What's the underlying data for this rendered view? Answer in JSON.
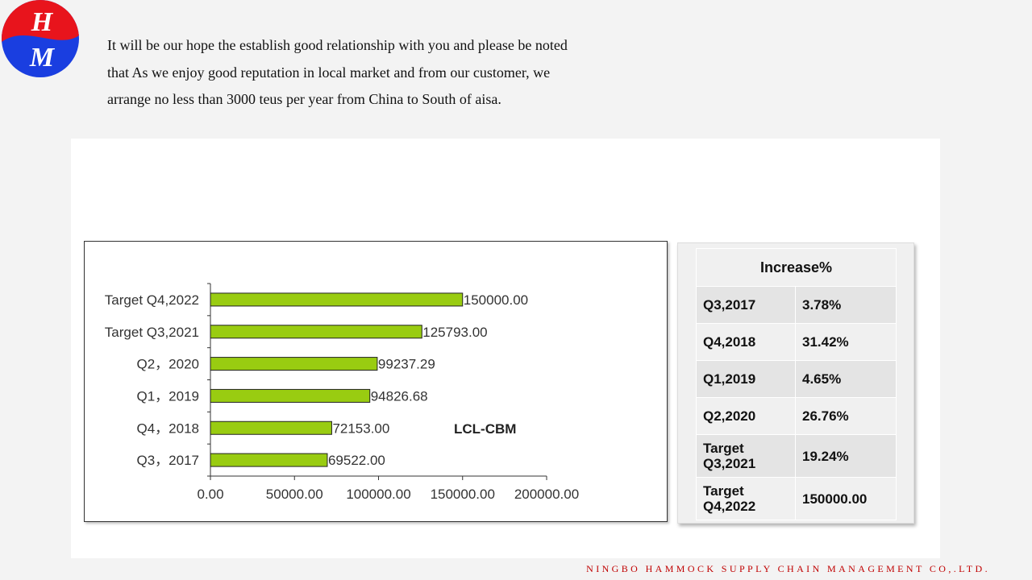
{
  "logo": {
    "letter_top": "H",
    "letter_bottom": "M",
    "colors": {
      "top": "#e8141c",
      "bottom": "#1a3ee0"
    }
  },
  "intro_text": "It will be our hope the establish good relationship with you and please be noted that As we enjoy good reputation in local market and from our customer, we arrange no less than 3000 teus per year from China to South of aisa.",
  "chart_data": {
    "type": "bar",
    "orientation": "horizontal",
    "categories": [
      "Q3，2017",
      "Q4，2018",
      "Q1，2019",
      "Q2，2020",
      "Target Q3,2021",
      "Target Q4,2022"
    ],
    "values": [
      69522.0,
      72153.0,
      94826.68,
      99237.29,
      125793.0,
      150000.0
    ],
    "value_labels": [
      "69522.00",
      "72153.00",
      "94826.68",
      "99237.29",
      "125793.00",
      "150000.00"
    ],
    "x_ticks": [
      "0.00",
      "50000.00",
      "100000.00",
      "150000.00",
      "200000.00"
    ],
    "xlim": [
      0,
      200000
    ],
    "annotation": "LCL-CBM",
    "bar_color": "#99cc11",
    "grid": false,
    "legend": "none"
  },
  "increase_table": {
    "header": "Increase%",
    "rows": [
      {
        "period": "Q3,2017",
        "value": "3.78%"
      },
      {
        "period": "Q4,2018",
        "value": "31.42%"
      },
      {
        "period": "Q1,2019",
        "value": "4.65%"
      },
      {
        "period": "Q2,2020",
        "value": "26.76%"
      },
      {
        "period": "Target Q3,2021",
        "value": "19.24%"
      },
      {
        "period": "Target Q4,2022",
        "value": "150000.00"
      }
    ]
  },
  "footer": "NINGBO HAMMOCK SUPPLY CHAIN MANAGEMENT CO,.LTD."
}
